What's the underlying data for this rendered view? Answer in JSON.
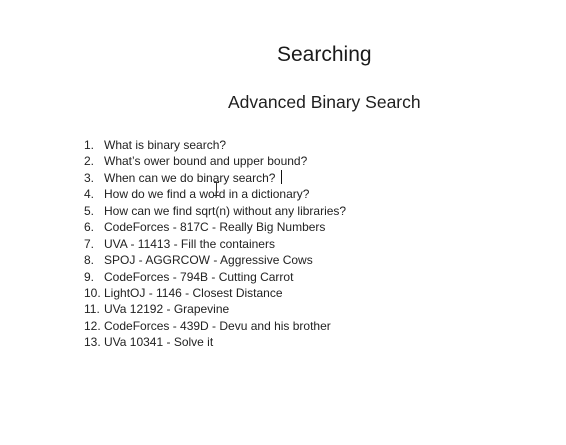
{
  "slide": {
    "title": "Searching",
    "subtitle": "Advanced Binary Search",
    "items": [
      {
        "number": "1.",
        "text": "What is binary search?"
      },
      {
        "number": "2.",
        "text": "What’s ower bound and upper bound?"
      },
      {
        "number": "3.",
        "text": "When can we do binary search?"
      },
      {
        "number": "4.",
        "text": "How do we find a word in a dictionary?"
      },
      {
        "number": "5.",
        "text": "How can we find sqrt(n) without any libraries?"
      },
      {
        "number": "6.",
        "text": "CodeForces - 817C - Really Big Numbers"
      },
      {
        "number": "7.",
        "text": "UVA - 11413 - Fill the containers"
      },
      {
        "number": "8.",
        "text": "SPOJ - AGGRCOW - Aggressive Cows"
      },
      {
        "number": "9.",
        "text": "CodeForces - 794B - Cutting Carrot"
      },
      {
        "number": "10.",
        "text": "LightOJ - 1146 - Closest Distance"
      },
      {
        "number": "11.",
        "text": "UVa 12192 - Grapevine"
      },
      {
        "number": "12.",
        "text": "CodeForces - 439D - Devu and his brother"
      },
      {
        "number": "13.",
        "text": "UVa 10341 - Solve it"
      }
    ]
  }
}
